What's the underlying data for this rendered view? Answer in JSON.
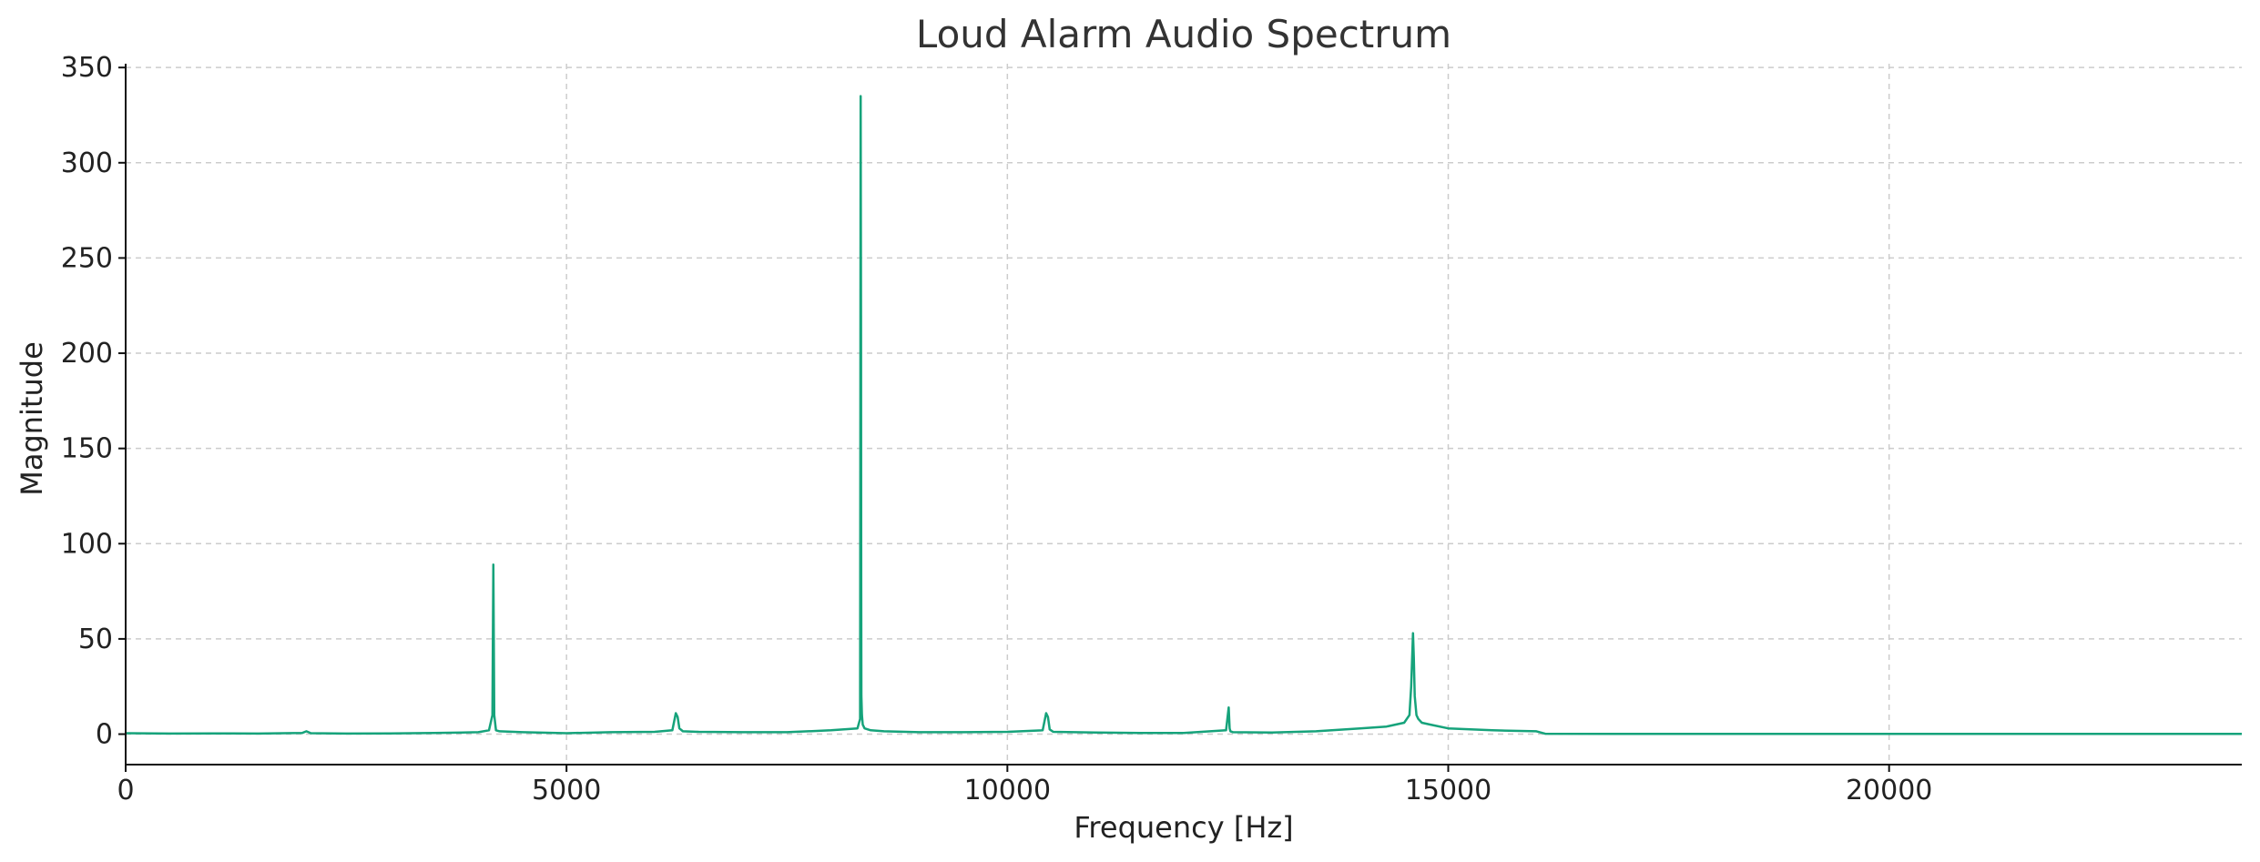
{
  "chart_data": {
    "type": "line",
    "title": "Loud Alarm Audio Spectrum",
    "xlabel": "Frequency [Hz]",
    "ylabel": "Magnitude",
    "xlim": [
      0,
      24000
    ],
    "ylim": [
      -16,
      352
    ],
    "xticks": [
      0,
      5000,
      10000,
      15000,
      20000
    ],
    "yticks": [
      0,
      50,
      100,
      150,
      200,
      250,
      300,
      350
    ],
    "grid": true,
    "line_color": "#16a37b",
    "series": [
      {
        "x": [
          0,
          500,
          1000,
          1500,
          2000,
          2050,
          2100,
          2500,
          3000,
          3500,
          4000,
          4120,
          4160,
          4170,
          4180,
          4200,
          4240,
          4500,
          5000,
          5500,
          6000,
          6200,
          6240,
          6260,
          6280,
          6320,
          6500,
          7000,
          7500,
          8000,
          8300,
          8330,
          8336,
          8340,
          8342,
          8344,
          8350,
          8360,
          8380,
          8450,
          8600,
          9000,
          9500,
          10000,
          10400,
          10440,
          10460,
          10480,
          10520,
          11000,
          11500,
          12000,
          12480,
          12510,
          12520,
          12530,
          12560,
          13000,
          13500,
          14000,
          14300,
          14500,
          14560,
          14580,
          14600,
          14610,
          14620,
          14640,
          14660,
          14700,
          14800,
          15000,
          15500,
          16000,
          16100,
          17000,
          18000,
          19000,
          20000,
          21000,
          22000,
          23000,
          24000
        ],
        "y": [
          0.5,
          0.3,
          0.4,
          0.3,
          0.6,
          1.5,
          0.5,
          0.3,
          0.4,
          0.6,
          1,
          2,
          10,
          89,
          10,
          2,
          1.5,
          1,
          0.5,
          1,
          1.2,
          2,
          11,
          9,
          3,
          1.5,
          1.2,
          1,
          1,
          2,
          3,
          8,
          335,
          220,
          80,
          20,
          10,
          5,
          3,
          2,
          1.5,
          1,
          1,
          1.2,
          2,
          11,
          9,
          2.5,
          1.2,
          0.8,
          0.6,
          0.6,
          2,
          14,
          3,
          1.5,
          1,
          0.8,
          1.5,
          3,
          4,
          6,
          10,
          25,
          53,
          40,
          20,
          10,
          8,
          6,
          5,
          3,
          2,
          1.5,
          0.2,
          0.1,
          0.1,
          0.1,
          0.1,
          0.1,
          0.1,
          0.1,
          0.1
        ]
      }
    ]
  }
}
